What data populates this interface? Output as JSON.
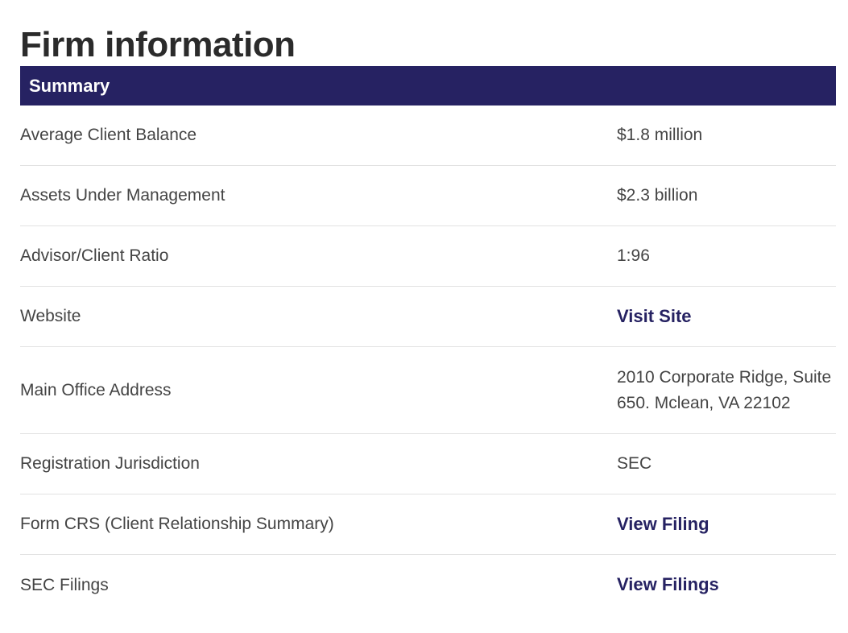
{
  "page": {
    "title": "Firm information"
  },
  "summary": {
    "header": "Summary",
    "rows": [
      {
        "label": "Average Client Balance",
        "value": "$1.8 million"
      },
      {
        "label": "Assets Under Management",
        "value": "$2.3 billion"
      },
      {
        "label": "Advisor/Client Ratio",
        "value": "1:96"
      },
      {
        "label": "Website",
        "value": "Visit Site"
      },
      {
        "label": "Main Office Address",
        "value": "2010 Corporate Ridge, Suite 650. Mclean, VA 22102"
      },
      {
        "label": "Registration Jurisdiction",
        "value": "SEC"
      },
      {
        "label": "Form CRS (Client Relationship Summary)",
        "value": "View Filing"
      },
      {
        "label": "SEC Filings",
        "value": "View Filings"
      }
    ]
  },
  "colors": {
    "header_bg": "#262262",
    "link": "#262262"
  }
}
